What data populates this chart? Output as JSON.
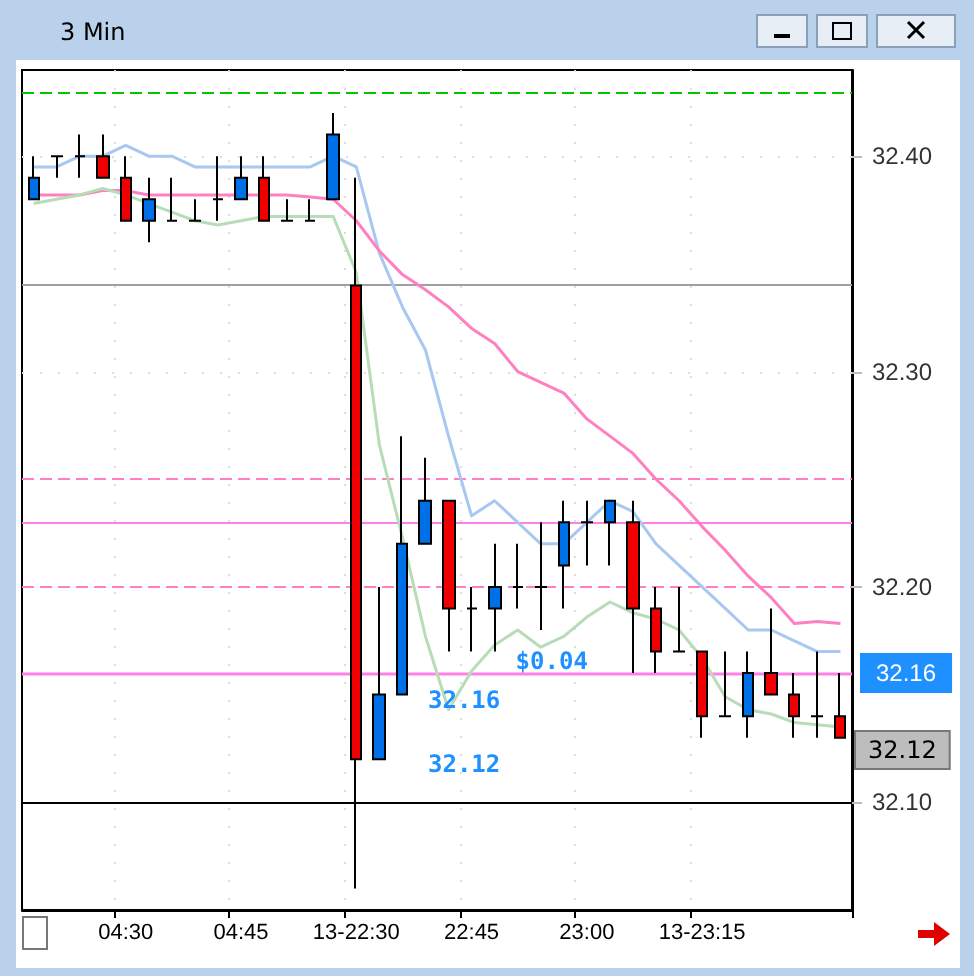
{
  "chart_data": {
    "type": "candlestick",
    "title": "3 Min",
    "categories": [
      null,
      null,
      null,
      null,
      "04:30",
      null,
      null,
      null,
      null,
      "04:45",
      null,
      null,
      null,
      null,
      "13-22:30",
      null,
      null,
      null,
      null,
      "22:45",
      null,
      null,
      null,
      null,
      "23:00",
      null,
      null,
      null,
      null,
      "13-23:15",
      null,
      null,
      null,
      null,
      null,
      null
    ],
    "ohlc": [
      [
        32.38,
        32.4,
        32.38,
        32.39
      ],
      [
        32.4,
        32.4,
        32.39,
        32.4
      ],
      [
        32.4,
        32.41,
        32.39,
        32.4
      ],
      [
        32.4,
        32.41,
        32.39,
        32.39
      ],
      [
        32.39,
        32.4,
        32.37,
        32.37
      ],
      [
        32.37,
        32.39,
        32.36,
        32.38
      ],
      [
        32.37,
        32.39,
        32.37,
        32.37
      ],
      [
        32.37,
        32.38,
        32.37,
        32.37
      ],
      [
        32.38,
        32.4,
        32.37,
        32.38
      ],
      [
        32.38,
        32.4,
        32.38,
        32.39
      ],
      [
        32.39,
        32.4,
        32.37,
        32.37
      ],
      [
        32.37,
        32.38,
        32.37,
        32.37
      ],
      [
        32.37,
        32.38,
        32.37,
        32.37
      ],
      [
        32.38,
        32.42,
        32.38,
        32.41
      ],
      [
        32.34,
        32.39,
        32.06,
        32.12
      ],
      [
        32.12,
        32.2,
        32.12,
        32.15
      ],
      [
        32.15,
        32.27,
        32.15,
        32.22
      ],
      [
        32.22,
        32.26,
        32.22,
        32.24
      ],
      [
        32.24,
        32.24,
        32.17,
        32.19
      ],
      [
        32.19,
        32.2,
        32.17,
        32.19
      ],
      [
        32.19,
        32.22,
        32.17,
        32.2
      ],
      [
        32.2,
        32.22,
        32.19,
        32.2
      ],
      [
        32.2,
        32.23,
        32.18,
        32.2
      ],
      [
        32.21,
        32.24,
        32.19,
        32.23
      ],
      [
        32.23,
        32.24,
        32.21,
        32.23
      ],
      [
        32.23,
        32.24,
        32.21,
        32.24
      ],
      [
        32.23,
        32.24,
        32.16,
        32.19
      ],
      [
        32.19,
        32.2,
        32.16,
        32.17
      ],
      [
        32.17,
        32.2,
        32.17,
        32.17
      ],
      [
        32.17,
        32.17,
        32.13,
        32.14
      ],
      [
        32.14,
        32.17,
        32.14,
        32.14
      ],
      [
        32.14,
        32.17,
        32.13,
        32.16
      ],
      [
        32.16,
        32.19,
        32.15,
        32.15
      ],
      [
        32.15,
        32.16,
        32.13,
        32.14
      ],
      [
        32.14,
        32.17,
        32.13,
        32.14
      ],
      [
        32.14,
        32.16,
        32.13,
        32.13
      ]
    ],
    "series": [
      {
        "type": "line",
        "color": "#a8c8f0",
        "values": [
          32.395,
          32.395,
          32.4,
          32.4,
          32.405,
          32.4,
          32.4,
          32.395,
          32.395,
          32.395,
          32.395,
          32.395,
          32.395,
          32.4,
          32.395,
          32.355,
          32.33,
          32.31,
          32.27,
          32.233,
          32.24,
          32.23,
          32.22,
          32.22,
          32.23,
          32.24,
          32.235,
          32.22,
          32.21,
          32.2,
          32.19,
          32.18,
          32.18,
          32.175,
          32.17,
          32.17
        ]
      },
      {
        "type": "line",
        "color": "#ff80c0",
        "values": [
          32.382,
          32.382,
          32.382,
          32.384,
          32.384,
          32.382,
          32.382,
          32.382,
          32.382,
          32.382,
          32.382,
          32.382,
          32.381,
          32.38,
          32.37,
          32.356,
          32.345,
          32.338,
          32.33,
          32.32,
          32.313,
          32.3,
          32.295,
          32.29,
          32.278,
          32.27,
          32.262,
          32.25,
          32.24,
          32.228,
          32.217,
          32.205,
          32.195,
          32.183,
          32.184,
          32.183
        ]
      },
      {
        "type": "line",
        "color": "#b8dcb8",
        "values": [
          32.378,
          32.38,
          32.382,
          32.385,
          32.382,
          32.378,
          32.374,
          32.37,
          32.368,
          32.37,
          32.372,
          32.372,
          32.372,
          32.372,
          32.346,
          32.266,
          32.223,
          32.177,
          32.143,
          32.161,
          32.173,
          32.18,
          32.172,
          32.177,
          32.186,
          32.193,
          32.188,
          32.185,
          32.18,
          32.167,
          32.149,
          32.143,
          32.141,
          32.137,
          32.136,
          32.135
        ]
      }
    ],
    "ylim": [
      32.05,
      32.44
    ],
    "yticks": [
      {
        "value": 32.1,
        "label": "32.10"
      },
      {
        "value": 32.2,
        "label": "32.20"
      },
      {
        "value": 32.3,
        "label": "32.30"
      },
      {
        "value": 32.4,
        "label": "32.40"
      }
    ],
    "ref_lines": [
      {
        "axis": "y",
        "value": 32.43,
        "color": "#00c800",
        "line_style": "dashed"
      },
      {
        "axis": "y",
        "value": 32.34,
        "color": "#a0a0a0",
        "line_style": "solid"
      },
      {
        "axis": "y",
        "value": 32.25,
        "color": "#ff80c0",
        "line_style": "dashed"
      },
      {
        "axis": "y",
        "value": 32.23,
        "color": "#ff80e8",
        "line_style": "solid"
      },
      {
        "axis": "y",
        "value": 32.2,
        "color": "#ff80c0",
        "line_style": "dashed"
      },
      {
        "axis": "y",
        "value": 32.16,
        "color": "#ff80e8",
        "line_style": "solid",
        "label": "32.16"
      },
      {
        "axis": "y",
        "value": 32.1,
        "color": "#000000",
        "line_style": "solid"
      }
    ],
    "annotations": [
      {
        "text": "$0.04",
        "x": "22:45",
        "y": 32.16
      },
      "32.16",
      "32.12",
      "32.12"
    ],
    "grid": true
  }
}
